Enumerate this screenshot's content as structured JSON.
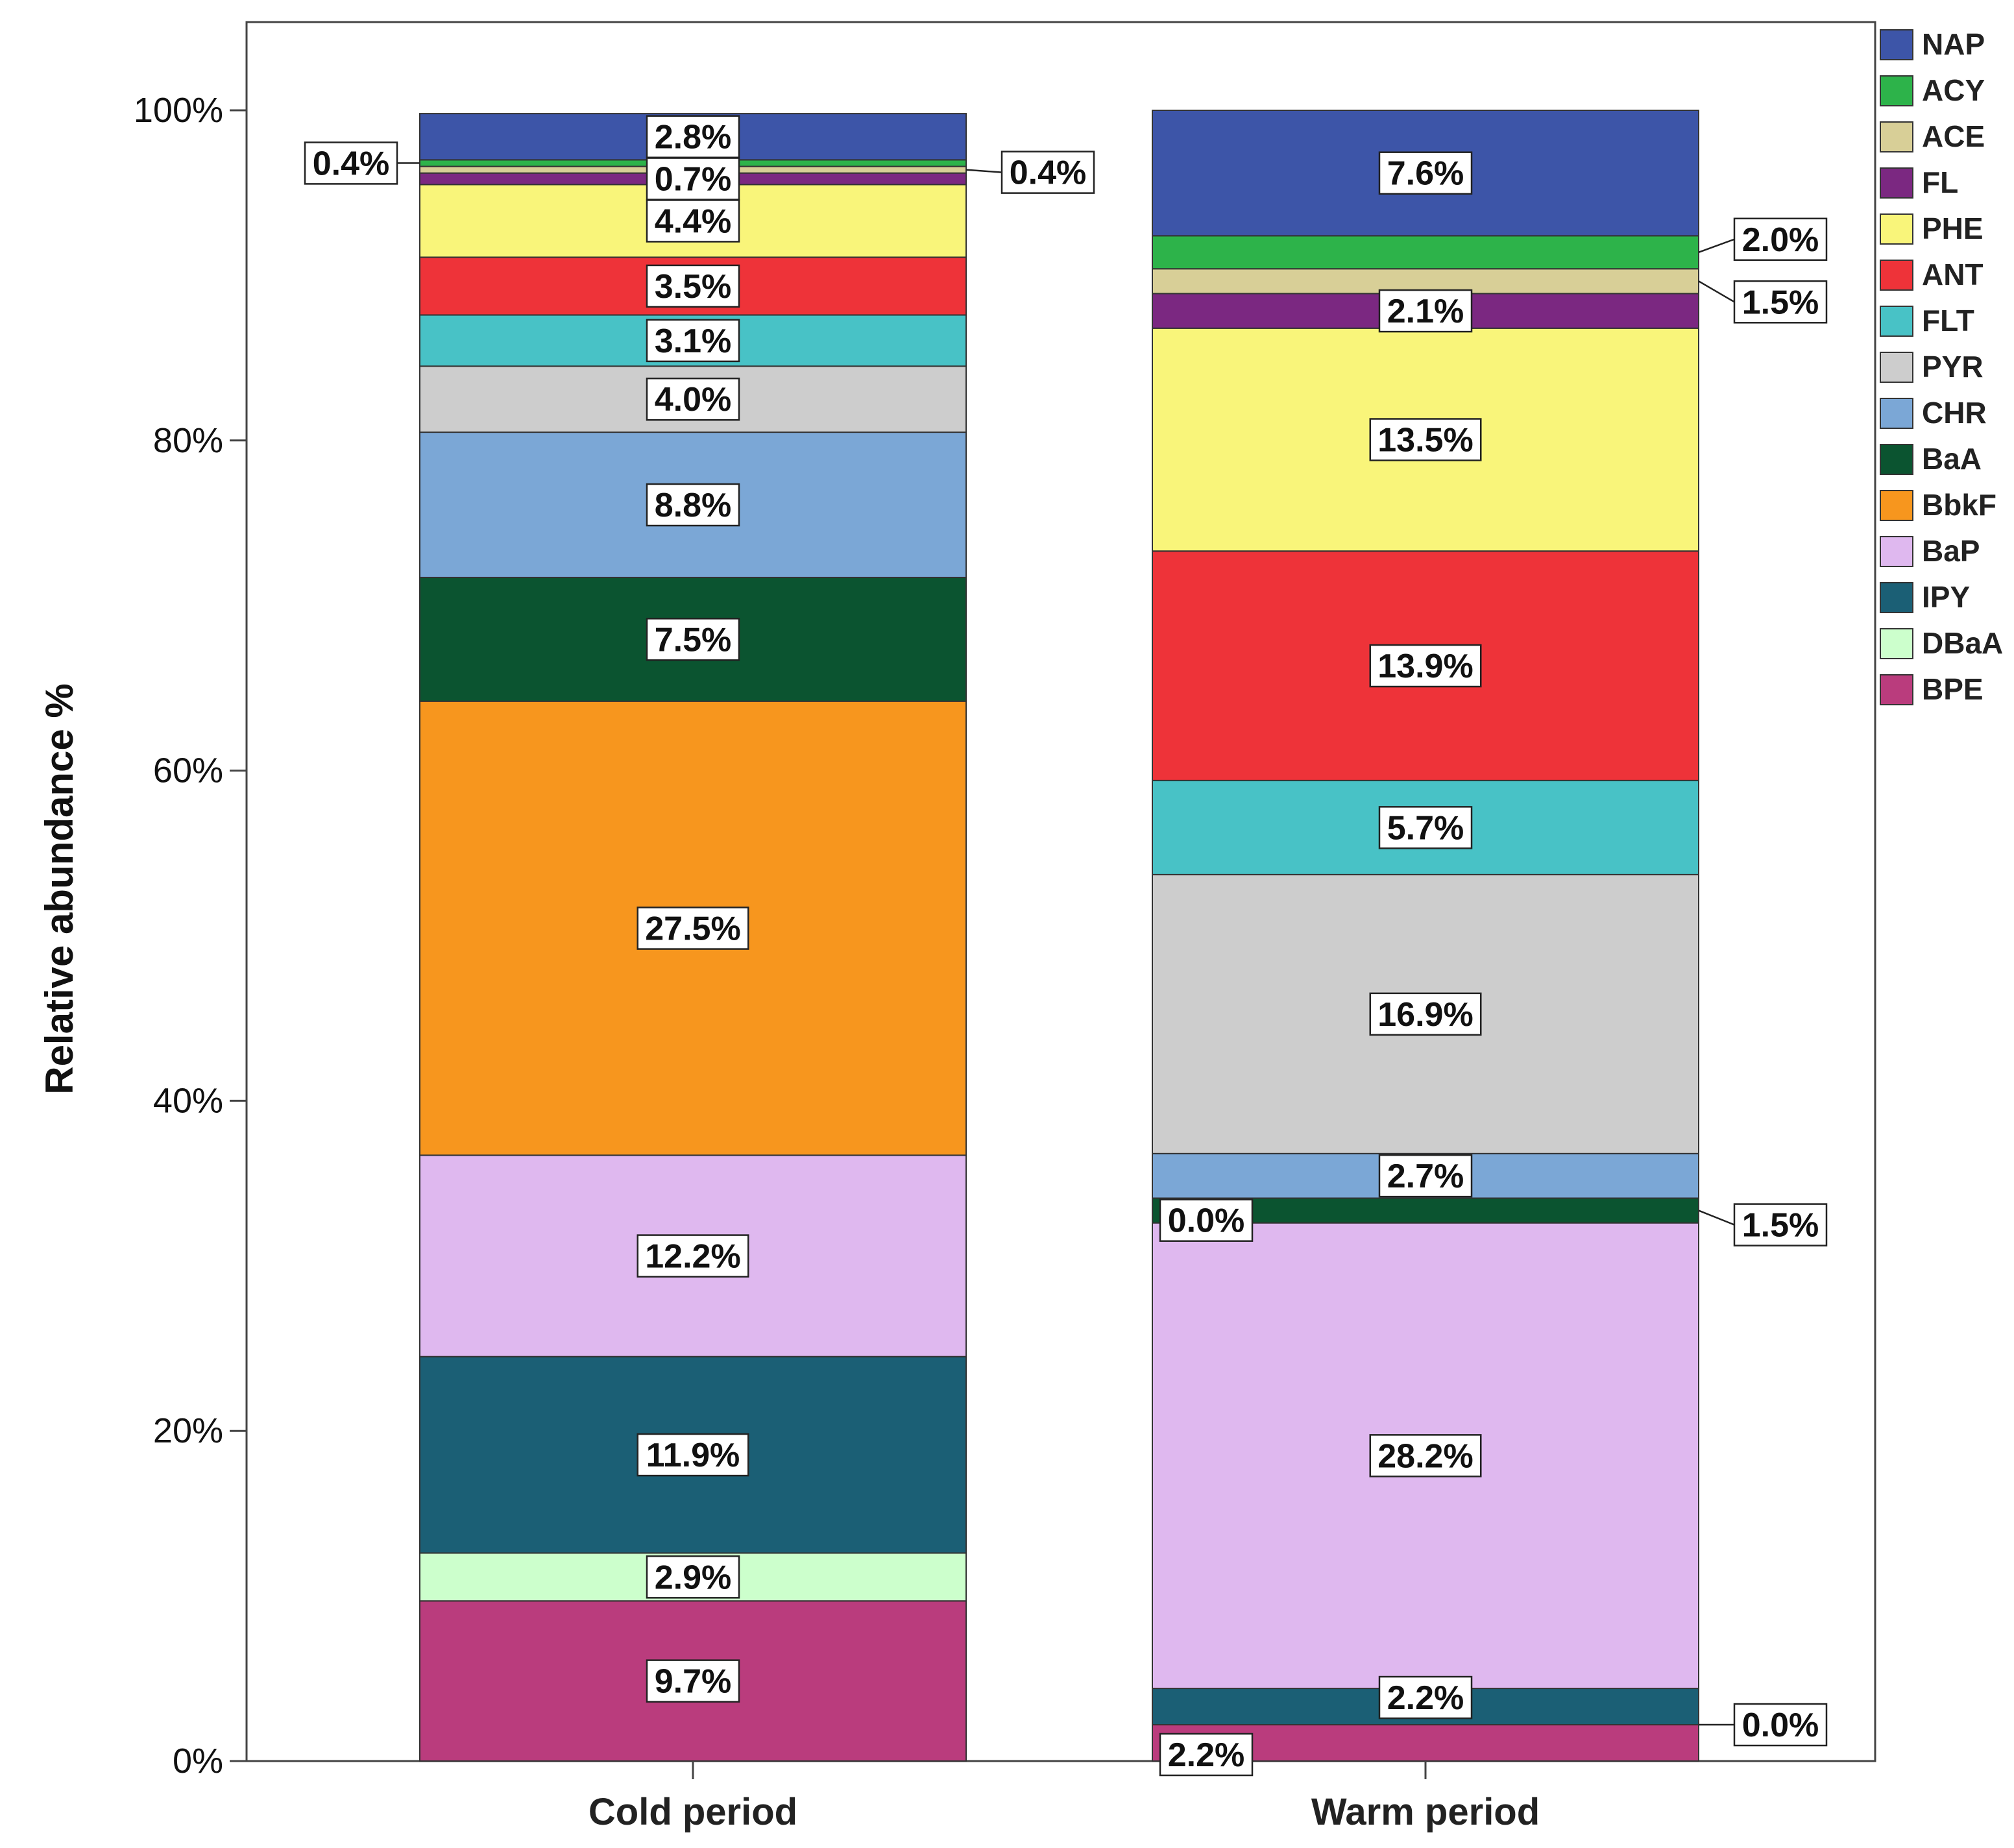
{
  "chart_data": {
    "type": "bar",
    "stacked": true,
    "normalized": true,
    "title": "",
    "xlabel": "",
    "ylabel": "Relative abundance %",
    "ylim": [
      0,
      100
    ],
    "yticks": [
      "0%",
      "20%",
      "40%",
      "60%",
      "80%",
      "100%"
    ],
    "legend_position": "right",
    "categories": [
      "Cold period",
      "Warm period"
    ],
    "series": [
      {
        "name": "NAP",
        "color": "#3d55a8",
        "values": [
          2.8,
          7.6
        ],
        "labels": [
          "2.8%",
          "7.6%"
        ]
      },
      {
        "name": "ACY",
        "color": "#2db34a",
        "values": [
          0.4,
          2.0
        ],
        "labels": [
          "0.4%",
          "2.0%"
        ]
      },
      {
        "name": "ACE",
        "color": "#d8cf97",
        "values": [
          0.4,
          1.5
        ],
        "labels": [
          "0.4%",
          "1.5%"
        ]
      },
      {
        "name": "FL",
        "color": "#7b2881",
        "values": [
          0.7,
          2.1
        ],
        "labels": [
          "0.7%",
          "2.1%"
        ]
      },
      {
        "name": "PHE",
        "color": "#f9f57a",
        "values": [
          4.4,
          13.5
        ],
        "labels": [
          "4.4%",
          "13.5%"
        ]
      },
      {
        "name": "ANT",
        "color": "#ee3339",
        "values": [
          3.5,
          13.9
        ],
        "labels": [
          "3.5%",
          "13.9%"
        ]
      },
      {
        "name": "FLT",
        "color": "#48c2c6",
        "values": [
          3.1,
          5.7
        ],
        "labels": [
          "3.1%",
          "5.7%"
        ]
      },
      {
        "name": "PYR",
        "color": "#cdcdcd",
        "values": [
          4.0,
          16.9
        ],
        "labels": [
          "4.0%",
          "16.9%"
        ]
      },
      {
        "name": "CHR",
        "color": "#7ba7d6",
        "values": [
          8.8,
          2.7
        ],
        "labels": [
          "8.8%",
          "2.7%"
        ]
      },
      {
        "name": "BaA",
        "color": "#0b5430",
        "values": [
          7.5,
          1.5
        ],
        "labels": [
          "7.5%",
          "1.5%"
        ]
      },
      {
        "name": "BbkF",
        "color": "#f7961e",
        "values": [
          27.5,
          0.0
        ],
        "labels": [
          "27.5%",
          "0.0%"
        ]
      },
      {
        "name": "BaP",
        "color": "#dfb8ef",
        "values": [
          12.2,
          28.2
        ],
        "labels": [
          "12.2%",
          "28.2%"
        ]
      },
      {
        "name": "IPY",
        "color": "#1b5f75",
        "values": [
          11.9,
          2.2
        ],
        "labels": [
          "11.9%",
          "2.2%"
        ]
      },
      {
        "name": "DBaA",
        "color": "#ccffcc",
        "values": [
          2.9,
          0.0
        ],
        "labels": [
          "2.9%",
          "0.0%"
        ]
      },
      {
        "name": "BPE",
        "color": "#ba3c7d",
        "values": [
          9.7,
          2.2
        ],
        "labels": [
          "9.7%",
          "2.2%"
        ]
      }
    ]
  }
}
